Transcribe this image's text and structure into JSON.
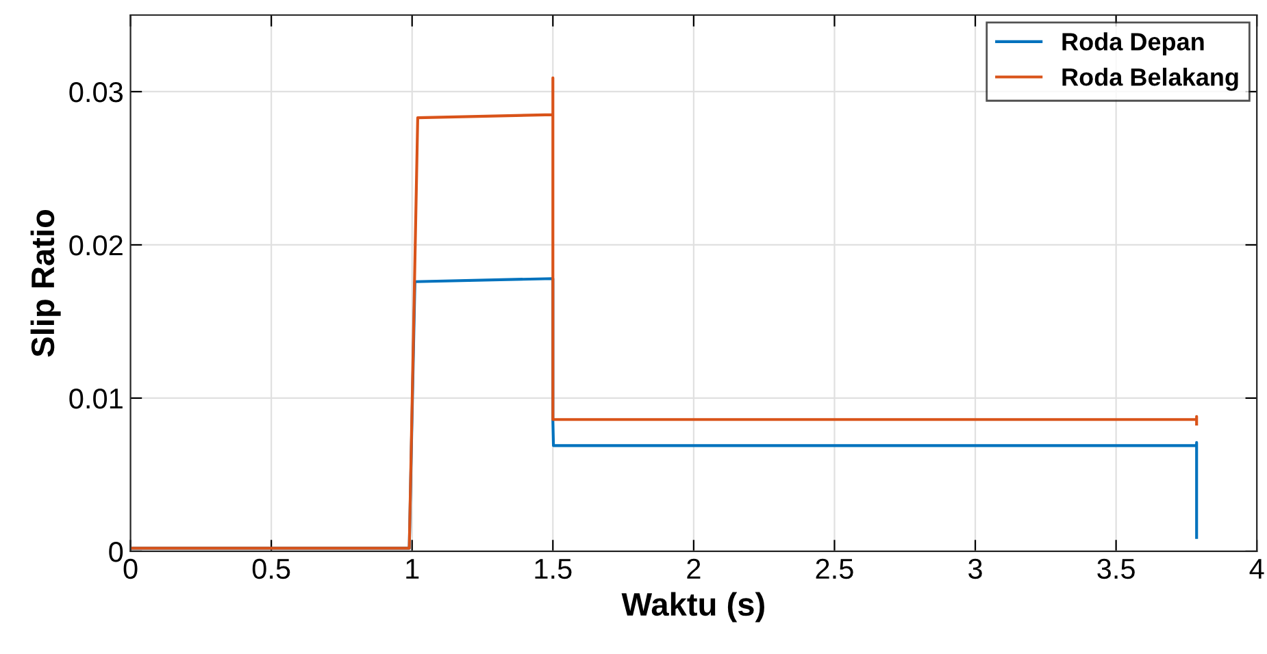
{
  "chart_data": {
    "type": "line",
    "xlabel": "Waktu (s)",
    "ylabel": "Slip Ratio",
    "series": [
      {
        "name": "Roda Depan",
        "color": "#0072bd",
        "x": [
          0,
          0.99,
          1.01,
          1.5,
          1.5,
          1.502,
          3.786,
          3.786,
          3.786
        ],
        "values": [
          0.0002,
          0.0002,
          0.0176,
          0.0178,
          0.0085,
          0.0069,
          0.0069,
          0.0071,
          0.0009
        ]
      },
      {
        "name": "Roda Belakang",
        "color": "#d95319",
        "x": [
          0,
          0.99,
          1.02,
          1.5,
          1.5,
          1.5,
          1.502,
          3.786,
          3.786,
          3.786
        ],
        "values": [
          0.0002,
          0.0002,
          0.0283,
          0.0285,
          0.0309,
          0.0086,
          0.0086,
          0.0086,
          0.0088,
          0.0083
        ]
      }
    ],
    "xlim": [
      0,
      4
    ],
    "ylim": [
      0,
      0.035
    ],
    "xticks": [
      0,
      0.5,
      1,
      1.5,
      2,
      2.5,
      3,
      3.5,
      4
    ],
    "yticks": [
      0,
      0.01,
      0.02,
      0.03
    ],
    "grid": true,
    "legend": "top right",
    "line_style": "solid",
    "marker": "none"
  }
}
